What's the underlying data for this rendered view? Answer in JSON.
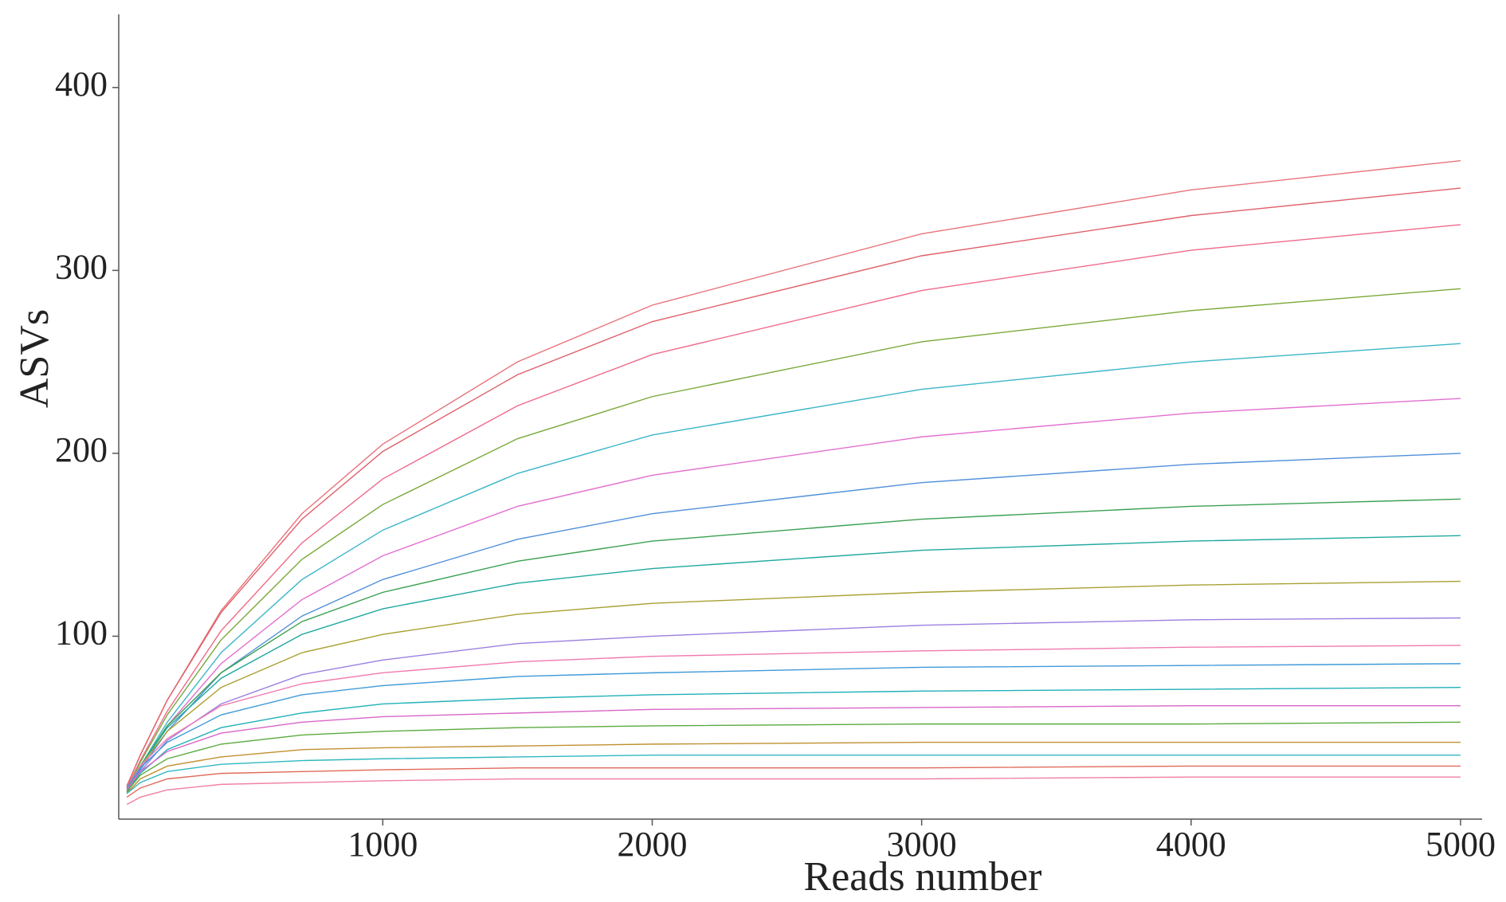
{
  "chart_data": {
    "type": "line",
    "x_label": "Reads number",
    "y_label": "ASVs",
    "xlim": [
      20,
      5080
    ],
    "ylim": [
      0,
      440
    ],
    "xticks": [
      1000,
      2000,
      3000,
      4000,
      5000
    ],
    "yticks": [
      100,
      200,
      300,
      400
    ],
    "x": [
      50,
      100,
      200,
      400,
      700,
      1000,
      1500,
      2000,
      3000,
      4000,
      5000
    ],
    "series": [
      {
        "color": "#e8737a",
        "values": [
          18,
          35,
          65,
          114,
          167,
          205,
          250,
          281,
          320,
          344,
          360
        ]
      },
      {
        "color": "#e0606a",
        "values": [
          18,
          35,
          65,
          113,
          164,
          201,
          243,
          272,
          308,
          330,
          345
        ]
      },
      {
        "color": "#f06a8a",
        "values": [
          17,
          32,
          59,
          103,
          151,
          186,
          226,
          254,
          289,
          311,
          325
        ]
      },
      {
        "color": "#7aa83a",
        "values": [
          16,
          31,
          57,
          98,
          142,
          172,
          208,
          231,
          261,
          278,
          290
        ]
      },
      {
        "color": "#3bb5c8",
        "values": [
          15,
          29,
          53,
          91,
          131,
          158,
          189,
          210,
          235,
          250,
          260
        ]
      },
      {
        "color": "#e36fd0",
        "values": [
          15,
          28,
          51,
          85,
          120,
          144,
          171,
          188,
          209,
          222,
          230
        ]
      },
      {
        "color": "#4f8fd9",
        "values": [
          14,
          27,
          48,
          80,
          111,
          131,
          153,
          167,
          184,
          194,
          200
        ]
      },
      {
        "color": "#3aa050",
        "values": [
          16,
          29,
          51,
          80,
          108,
          124,
          141,
          152,
          164,
          171,
          175
        ]
      },
      {
        "color": "#1fa8a0",
        "values": [
          16,
          29,
          50,
          77,
          101,
          115,
          129,
          137,
          147,
          152,
          155
        ]
      },
      {
        "color": "#a8a030",
        "values": [
          16,
          29,
          48,
          72,
          91,
          101,
          112,
          118,
          124,
          128,
          130
        ]
      },
      {
        "color": "#9b7fe0",
        "values": [
          15,
          26,
          43,
          63,
          79,
          87,
          96,
          100,
          106,
          109,
          110
        ]
      },
      {
        "color": "#f07ab0",
        "values": [
          17,
          29,
          44,
          62,
          74,
          80,
          86,
          89,
          92,
          94,
          95
        ]
      },
      {
        "color": "#3f9ad8",
        "values": [
          17,
          28,
          42,
          57,
          68,
          73,
          78,
          80,
          83,
          84,
          85
        ]
      },
      {
        "color": "#20b0b8",
        "values": [
          15,
          25,
          38,
          50,
          58,
          63,
          66,
          68,
          70,
          71,
          72
        ]
      },
      {
        "color": "#d965c8",
        "values": [
          16,
          26,
          37,
          47,
          53,
          56,
          58,
          60,
          61,
          62,
          62
        ]
      },
      {
        "color": "#5aaa40",
        "values": [
          15,
          24,
          33,
          41,
          46,
          48,
          50,
          51,
          52,
          52,
          53
        ]
      },
      {
        "color": "#c09030",
        "values": [
          14,
          22,
          29,
          34,
          38,
          39,
          40,
          41,
          42,
          42,
          42
        ]
      },
      {
        "color": "#30b8c0",
        "values": [
          14,
          20,
          26,
          30,
          32,
          33,
          34,
          35,
          35,
          35,
          35
        ]
      },
      {
        "color": "#e06a5a",
        "values": [
          12,
          17,
          22,
          25,
          26,
          27,
          28,
          28,
          28,
          29,
          29
        ]
      },
      {
        "color": "#f080a0",
        "values": [
          8,
          12,
          16,
          19,
          20,
          21,
          22,
          22,
          22,
          23,
          23
        ]
      }
    ]
  }
}
